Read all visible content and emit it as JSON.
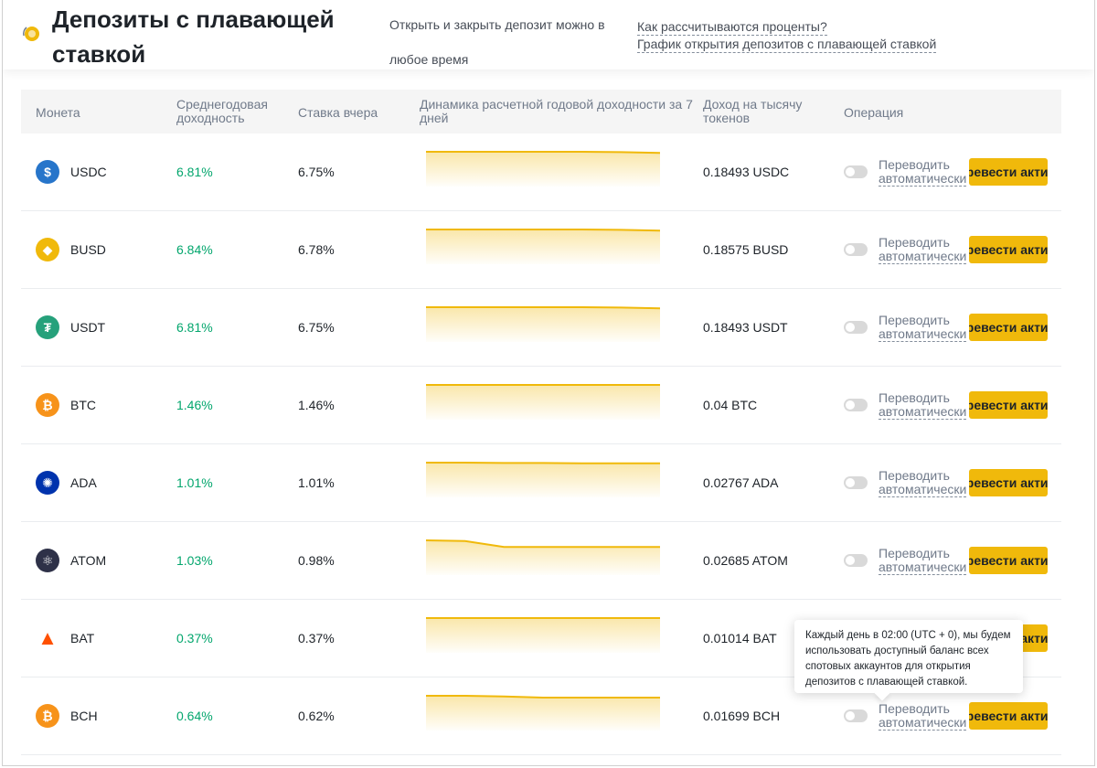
{
  "header": {
    "title": "Депозиты с плавающей ставкой",
    "subtitle": "Открыть и закрыть депозит можно в любое время",
    "links": [
      "Как рассчитываются проценты?",
      "График открытия депозитов с плавающей ставкой"
    ]
  },
  "table": {
    "columns": [
      "Монета",
      "Среднегодовая доходность",
      "Ставка вчера",
      "Динамика расчетной годовой доходности за 7 дней",
      "Доход на тысячу токенов",
      "Операция"
    ],
    "auto_label_line1": "Переводить",
    "auto_label_line2": "автоматически",
    "transfer_button": "Перевести активы",
    "rows": [
      {
        "coin": "USDC",
        "apy": "6.81%",
        "yesterday": "6.75%",
        "income": "0.18493 USDC",
        "icon": "usdc-icon",
        "color": "#2775ca",
        "trend": [
          0.1,
          0.1,
          0.1,
          0.1,
          0.1,
          0.11,
          0.13
        ]
      },
      {
        "coin": "BUSD",
        "apy": "6.84%",
        "yesterday": "6.78%",
        "income": "0.18575 BUSD",
        "icon": "busd-icon",
        "color": "#f0b90b",
        "trend": [
          0.1,
          0.1,
          0.1,
          0.1,
          0.1,
          0.11,
          0.13
        ]
      },
      {
        "coin": "USDT",
        "apy": "6.81%",
        "yesterday": "6.75%",
        "income": "0.18493 USDT",
        "icon": "usdt-icon",
        "color": "#26a17b",
        "trend": [
          0.1,
          0.1,
          0.1,
          0.1,
          0.1,
          0.11,
          0.13
        ]
      },
      {
        "coin": "BTC",
        "apy": "1.46%",
        "yesterday": "1.46%",
        "income": "0.04 BTC",
        "icon": "btc-icon",
        "color": "#f7931a",
        "trend": [
          0.1,
          0.1,
          0.1,
          0.1,
          0.1,
          0.1,
          0.1
        ]
      },
      {
        "coin": "ADA",
        "apy": "1.01%",
        "yesterday": "1.01%",
        "income": "0.02767 ADA",
        "icon": "ada-icon",
        "color": "#0033ad",
        "trend": [
          0.1,
          0.1,
          0.11,
          0.11,
          0.12,
          0.12,
          0.12
        ]
      },
      {
        "coin": "ATOM",
        "apy": "1.03%",
        "yesterday": "0.98%",
        "income": "0.02685 ATOM",
        "icon": "atom-icon",
        "color": "#2e3148",
        "trend": [
          0.1,
          0.12,
          0.28,
          0.28,
          0.28,
          0.28,
          0.28
        ]
      },
      {
        "coin": "BAT",
        "apy": "0.37%",
        "yesterday": "0.37%",
        "income": "0.01014 BAT",
        "icon": "bat-icon",
        "color": "#ff5000",
        "trend": [
          0.1,
          0.1,
          0.1,
          0.1,
          0.1,
          0.1,
          0.1
        ]
      },
      {
        "coin": "BCH",
        "apy": "0.64%",
        "yesterday": "0.62%",
        "income": "0.01699 BCH",
        "icon": "bch-icon",
        "color": "#f7931a",
        "trend": [
          0.1,
          0.1,
          0.12,
          0.15,
          0.15,
          0.15,
          0.15
        ]
      }
    ]
  },
  "tooltip": {
    "text": "Каждый день в 02:00 (UTC + 0), мы будем использовать доступный баланс всех спотовых аккаунтов для открытия депозитов с плавающей ставкой."
  },
  "colors": {
    "accent": "#f0b90b",
    "positive": "#03a66d",
    "spark_line": "#f0b90b"
  }
}
